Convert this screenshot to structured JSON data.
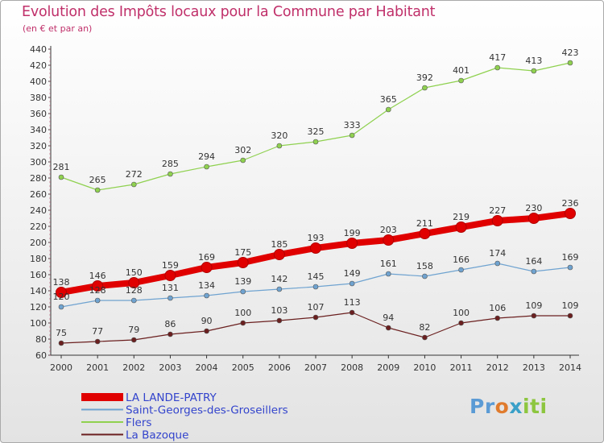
{
  "title": "Evolution des Impôts locaux pour la Commune par Habitant",
  "subtitle": "(en € et par an)",
  "logo": {
    "p1": "Pr",
    "p2": "o",
    "p3": "x",
    "p4": "iti"
  },
  "chart_data": {
    "type": "line",
    "title": "Evolution des Impôts locaux pour la Commune par Habitant",
    "subtitle": "(en € et par an)",
    "xlabel": "",
    "ylabel": "",
    "x": [
      2000,
      2001,
      2002,
      2003,
      2004,
      2005,
      2006,
      2007,
      2008,
      2009,
      2010,
      2011,
      2012,
      2013,
      2014
    ],
    "ylim": [
      60,
      440
    ],
    "yticks": [
      60,
      80,
      100,
      120,
      140,
      160,
      180,
      200,
      220,
      240,
      260,
      280,
      300,
      320,
      340,
      360,
      380,
      400,
      420,
      440
    ],
    "grid": false,
    "legend_position": "bottom",
    "series": [
      {
        "name": "LA LANDE-PATRY",
        "color": "#e00000",
        "values": [
          138,
          146,
          150,
          159,
          169,
          175,
          185,
          193,
          199,
          203,
          211,
          219,
          227,
          230,
          236
        ]
      },
      {
        "name": "Saint-Georges-des-Groseillers",
        "color": "#6fa3d0",
        "values": [
          120,
          128,
          128,
          131,
          134,
          139,
          142,
          145,
          149,
          161,
          158,
          166,
          174,
          164,
          169
        ]
      },
      {
        "name": "Flers",
        "color": "#8fd14f",
        "values": [
          281,
          265,
          272,
          285,
          294,
          302,
          320,
          325,
          333,
          365,
          392,
          401,
          417,
          413,
          423
        ]
      },
      {
        "name": "La Bazoque",
        "color": "#6b1f1f",
        "values": [
          75,
          77,
          79,
          86,
          90,
          100,
          103,
          107,
          113,
          94,
          82,
          100,
          106,
          109,
          109
        ]
      }
    ]
  }
}
